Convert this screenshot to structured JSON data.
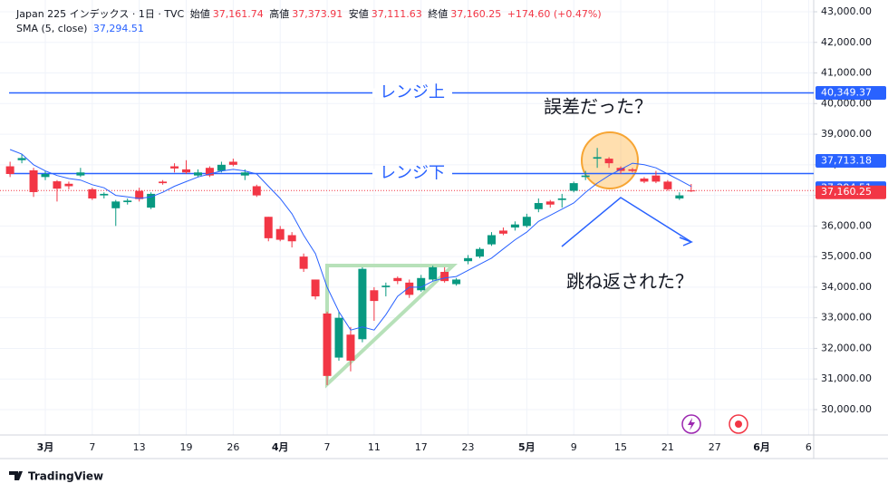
{
  "chart_data": {
    "type": "candlestick",
    "header": {
      "symbol": "Japan 225 インデックス · 1日 · TVC",
      "open_label": "始値",
      "open": "37,161.74",
      "high_label": "高値",
      "high": "37,373.91",
      "low_label": "安値",
      "low": "37,111.63",
      "close_label": "終値",
      "close": "37,160.25",
      "change": "+174.60 (+0.47%)"
    },
    "sma_title": "SMA (5, close)",
    "sma_label": "37,294.51",
    "categories": [
      null,
      null,
      null,
      "3月",
      null,
      null,
      null,
      "7",
      null,
      null,
      null,
      "13",
      null,
      null,
      null,
      "19",
      null,
      null,
      null,
      "26",
      null,
      null,
      null,
      "4月",
      null,
      null,
      null,
      "7",
      null,
      null,
      null,
      "11",
      null,
      null,
      null,
      "17",
      null,
      null,
      null,
      "23",
      null,
      null,
      null,
      null,
      "5月",
      null,
      null,
      null,
      "9",
      null,
      null,
      null,
      "15",
      null,
      null,
      null,
      "21",
      null,
      null,
      null,
      "27",
      null,
      null,
      null,
      "6月",
      null,
      null,
      null,
      "6"
    ],
    "open": [
      37950,
      38150,
      37818,
      37600,
      37460,
      37380,
      37650,
      37200,
      37000,
      36580,
      36780,
      37150,
      36600,
      37450,
      37950,
      37850,
      37650,
      37900,
      37800,
      38100,
      37650,
      37300,
      36300,
      35900,
      35700,
      35000,
      34250,
      33140,
      31700,
      32450,
      32300,
      33900,
      34000,
      34300,
      34150,
      33900,
      34250,
      34500,
      34100,
      34850,
      35000,
      35400,
      35850,
      35950,
      36000,
      36550,
      36800,
      36850,
      37150,
      37600,
      38200,
      38200,
      37900,
      37850,
      37550,
      37650,
      37450,
      36900,
      37161.74,
      null,
      null,
      null,
      null,
      null,
      null,
      null,
      null,
      null,
      null
    ],
    "high": [
      38100,
      38350,
      37900,
      37800,
      37500,
      37450,
      37900,
      37250,
      37100,
      36850,
      36900,
      37250,
      37100,
      37500,
      38050,
      38150,
      37850,
      37950,
      38100,
      38200,
      37850,
      37350,
      36300,
      36000,
      35800,
      35100,
      34250,
      33200,
      33200,
      32700,
      34650,
      34000,
      34150,
      34350,
      34250,
      34400,
      34700,
      34650,
      34300,
      35050,
      35300,
      35800,
      35950,
      36150,
      36400,
      36900,
      36850,
      37050,
      37450,
      37800,
      38550,
      38250,
      37950,
      37900,
      37600,
      37800,
      37500,
      37100,
      37373.91,
      null,
      null,
      null,
      null,
      null,
      null,
      null,
      null,
      null,
      null
    ],
    "low": [
      37600,
      38050,
      36950,
      37500,
      36800,
      37200,
      37600,
      36850,
      36900,
      36000,
      36700,
      36800,
      36550,
      37350,
      37750,
      37700,
      37600,
      37600,
      37750,
      37950,
      37500,
      36950,
      35500,
      35500,
      35300,
      34500,
      33600,
      30800,
      31600,
      31250,
      32200,
      32900,
      33700,
      34100,
      33650,
      33850,
      34200,
      34150,
      34050,
      34750,
      34950,
      35350,
      35700,
      35850,
      35950,
      36450,
      36600,
      36600,
      37100,
      37500,
      37900,
      37900,
      37700,
      37750,
      37400,
      37400,
      37150,
      36850,
      37111.63,
      null,
      null,
      null,
      null,
      null,
      null,
      null,
      null,
      null,
      null
    ],
    "close": [
      37700,
      38220,
      37108,
      37700,
      37220,
      37300,
      37750,
      36900,
      37050,
      36800,
      36830,
      36880,
      37050,
      37400,
      37880,
      37750,
      37750,
      37650,
      38000,
      38000,
      37750,
      37000,
      35600,
      35550,
      35500,
      34600,
      33700,
      31100,
      33000,
      31600,
      34600,
      33550,
      34050,
      34200,
      33750,
      34300,
      34650,
      34200,
      34250,
      34950,
      35250,
      35700,
      35750,
      36050,
      36300,
      36750,
      36700,
      36900,
      37400,
      37650,
      38250,
      38050,
      37800,
      37800,
      37450,
      37450,
      37200,
      37000,
      37160.25,
      null,
      null,
      null,
      null,
      null,
      null,
      null,
      null,
      null,
      null
    ],
    "sma": [
      38500,
      38350,
      38000,
      37800,
      37650,
      37550,
      37500,
      37350,
      37250,
      37000,
      36950,
      36900,
      36950,
      37100,
      37300,
      37450,
      37600,
      37700,
      37800,
      37850,
      37800,
      37700,
      37300,
      36900,
      36400,
      35700,
      35100,
      34000,
      33200,
      32600,
      32700,
      32600,
      33100,
      33700,
      34000,
      34000,
      34200,
      34300,
      34350,
      34550,
      34750,
      34950,
      35250,
      35550,
      35800,
      36150,
      36350,
      36550,
      36750,
      37100,
      37400,
      37650,
      37850,
      38050,
      38000,
      37900,
      37700,
      37500,
      37294.51,
      null,
      null,
      null,
      null,
      null,
      null,
      null,
      null,
      null,
      null
    ],
    "up_color": "#089981",
    "down_color": "#f23645",
    "sma_color": "#2962ff",
    "ylim": [
      29170,
      43385
    ],
    "yticks": [
      {
        "value": 30000,
        "label": "30,000.00"
      },
      {
        "value": 31000,
        "label": "31,000.00"
      },
      {
        "value": 32000,
        "label": "32,000.00"
      },
      {
        "value": 33000,
        "label": "33,000.00"
      },
      {
        "value": 34000,
        "label": "34,000.00"
      },
      {
        "value": 35000,
        "label": "35,000.00"
      },
      {
        "value": 36000,
        "label": "36,000.00"
      },
      {
        "value": 37000,
        "label": "37,000.00"
      },
      {
        "value": 38000,
        "label": "38,000.00"
      },
      {
        "value": 39000,
        "label": "39,000.00"
      },
      {
        "value": 40000,
        "label": "40,000.00"
      },
      {
        "value": 41000,
        "label": "41,000.00"
      },
      {
        "value": 42000,
        "label": "42,000.00"
      },
      {
        "value": 43000,
        "label": "43,000.00"
      }
    ],
    "levels": [
      {
        "name": "レンジ上",
        "value": 40349.37,
        "label": "40,349.37",
        "color": "#2962ff"
      },
      {
        "name": "レンジ下",
        "value": 37713.18,
        "label": "37,713.18",
        "color": "#2962ff"
      }
    ],
    "last_price": {
      "value": 37160.25,
      "label": "37,160.25",
      "color": "#f23645"
    },
    "annotations": [
      "誤差だった？",
      "跳ね返された？"
    ],
    "footer": "TradingView"
  }
}
